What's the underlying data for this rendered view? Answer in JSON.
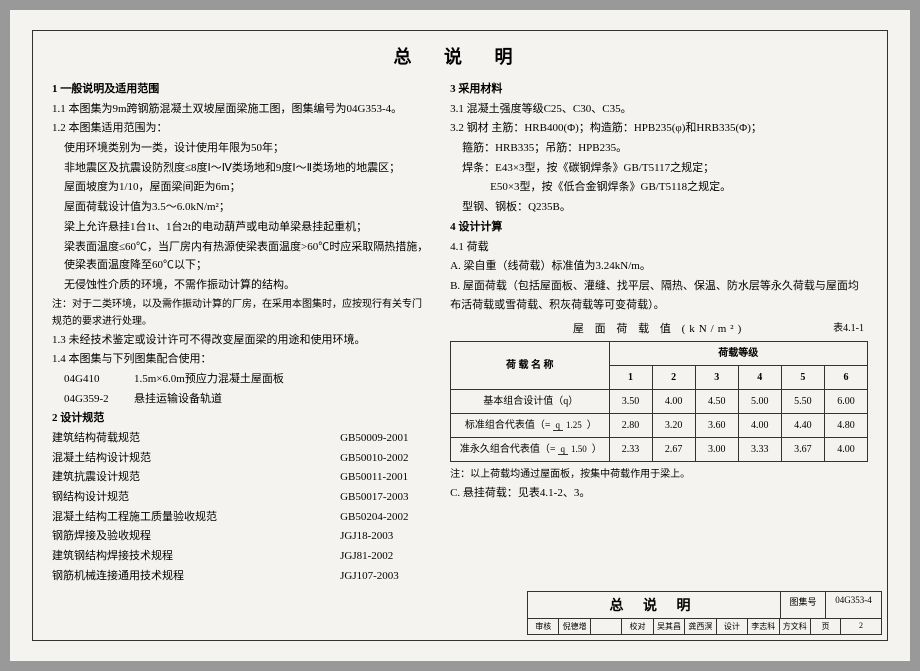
{
  "title": "总 说 明",
  "left": {
    "s1_h": "1  一般说明及适用范围",
    "s1_1": "1.1 本图集为9m跨钢筋混凝土双坡屋面梁施工图，图集编号为04G353-4。",
    "s1_2": "1.2 本图集适用范围为：",
    "s1_2a": "使用环境类别为一类，设计使用年限为50年；",
    "s1_2b": "非地震区及抗震设防烈度≤8度Ⅰ～Ⅳ类场地和9度Ⅰ～Ⅱ类场地的地震区；",
    "s1_2c": "屋面坡度为1/10，屋面梁间距为6m；",
    "s1_2d": "屋面荷载设计值为3.5～6.0kN/m²；",
    "s1_2e": "梁上允许悬挂1台1t、1台2t的电动葫芦或电动单梁悬挂起重机；",
    "s1_2f": "梁表面温度≤60℃，当厂房内有热源使梁表面温度>60℃时应采取隔热措施，使梁表面温度降至60℃以下；",
    "s1_2g": "无侵蚀性介质的环境，不需作振动计算的结构。",
    "s1_2note": "注：对于二类环境，以及需作振动计算的厂房，在采用本图集时，应按现行有关专门规范的要求进行处理。",
    "s1_3": "1.3 未经技术鉴定或设计许可不得改变屋面梁的用途和使用环境。",
    "s1_4": "1.4 本图集与下列图集配合使用：",
    "s1_4a_code": "04G410",
    "s1_4a_name": "1.5m×6.0m预应力混凝土屋面板",
    "s1_4b_code": "04G359-2",
    "s1_4b_name": "悬挂运输设备轨道",
    "s2_h": "2  设计规范",
    "specs": [
      {
        "name": "建筑结构荷载规范",
        "code": "GB50009-2001"
      },
      {
        "name": "混凝土结构设计规范",
        "code": "GB50010-2002"
      },
      {
        "name": "建筑抗震设计规范",
        "code": "GB50011-2001"
      },
      {
        "name": "钢结构设计规范",
        "code": "GB50017-2003"
      },
      {
        "name": "混凝土结构工程施工质量验收规范",
        "code": "GB50204-2002"
      },
      {
        "name": "钢筋焊接及验收规程",
        "code": "JGJ18-2003"
      },
      {
        "name": "建筑钢结构焊接技术规程",
        "code": "JGJ81-2002"
      },
      {
        "name": "钢筋机械连接通用技术规程",
        "code": "JGJ107-2003"
      }
    ]
  },
  "right": {
    "s3_h": "3  采用材料",
    "s3_1": "3.1 混凝土强度等级C25、C30、C35。",
    "s3_2": "3.2 钢材 主筋：HRB400(Φ)；构造筋：HPB235(φ)和HRB335(Φ)；",
    "s3_2a": "箍筋：HRB335；吊筋：HPB235。",
    "s3_2b": "焊条：E43×3型，按《碳钢焊条》GB/T5117之规定；",
    "s3_2c": "E50×3型，按《低合金钢焊条》GB/T5118之规定。",
    "s3_2d": "型钢、钢板：Q235B。",
    "s4_h": "4  设计计算",
    "s4_1": "4.1 荷载",
    "s4_1a": "A.  梁自重（线荷载）标准值为3.24kN/m。",
    "s4_1b": "B.  屋面荷载（包括屋面板、灌缝、找平层、隔热、保温、防水层等永久荷载与屋面均布活荷载或雪荷载、积灰荷载等可变荷载）。",
    "table_title": "屋 面 荷 载 值 (kN/m²)",
    "table_no": "表4.1-1",
    "col_h1": "荷 载 名 称",
    "col_h2": "荷载等级",
    "grades": [
      "1",
      "2",
      "3",
      "4",
      "5",
      "6"
    ],
    "row1": {
      "name": "基本组合设计值（q）",
      "v": [
        "3.50",
        "4.00",
        "4.50",
        "5.00",
        "5.50",
        "6.00"
      ]
    },
    "row2": {
      "name_pre": "标准组合代表值（=",
      "den": "1.25",
      "name_post": "）",
      "v": [
        "2.80",
        "3.20",
        "3.60",
        "4.00",
        "4.40",
        "4.80"
      ]
    },
    "row3": {
      "name_pre": "准永久组合代表值（=",
      "den": "1.50",
      "name_post": "）",
      "v": [
        "2.33",
        "2.67",
        "3.00",
        "3.33",
        "3.67",
        "4.00"
      ]
    },
    "table_note": "注：以上荷载均通过屋面板，按集中荷载作用于梁上。",
    "s4_1c": "C.  悬挂荷载：见表4.1-2、3。"
  },
  "titleblock": {
    "main": "总 说 明",
    "label1": "图集号",
    "code": "04G353-4",
    "sig_labels": [
      "审核",
      "倪德增",
      "",
      "校对",
      "吴其昌",
      "龚西溟",
      "设计",
      "李志科",
      "方文科"
    ],
    "page_label": "页",
    "page": "2"
  }
}
